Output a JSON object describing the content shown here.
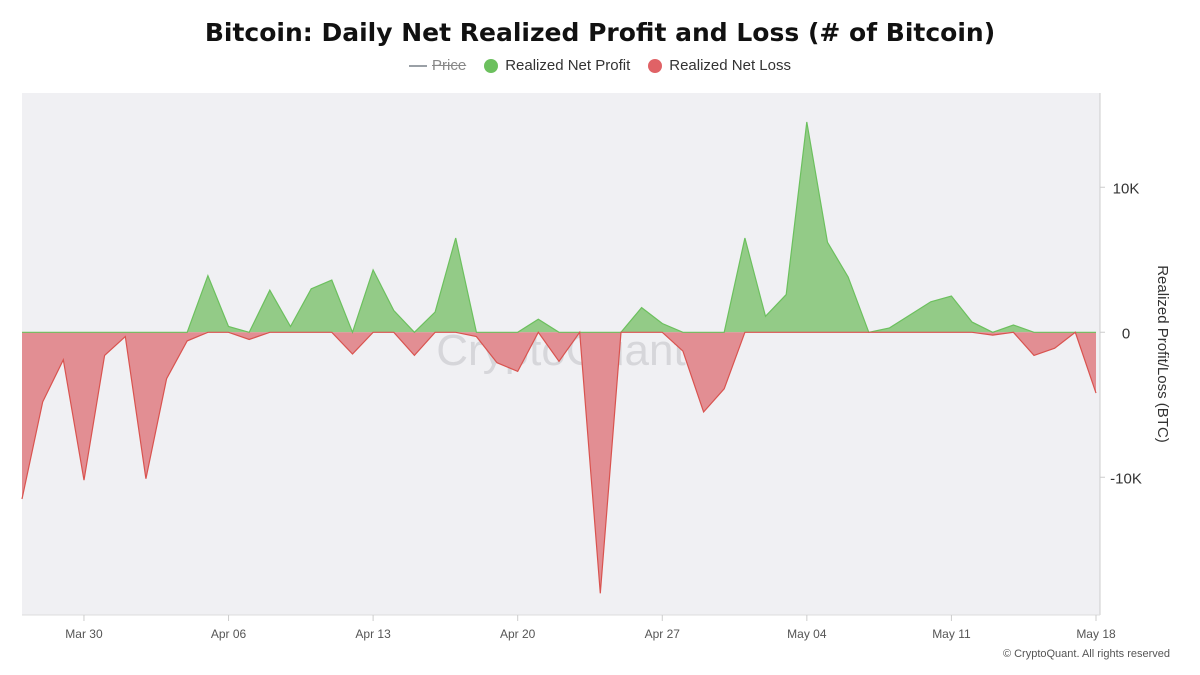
{
  "chart_data": {
    "type": "area",
    "title": "Bitcoin: Daily Net Realized Profit and Loss (# of Bitcoin)",
    "ylabel": "Realized Profit/Loss (BTC)",
    "xlabel": "",
    "ylim": [
      -19500,
      16500
    ],
    "y_ticks": [
      {
        "value": 10000,
        "label": "10K"
      },
      {
        "value": 0,
        "label": "0"
      },
      {
        "value": -10000,
        "label": "-10K"
      }
    ],
    "x_ticks": [
      {
        "date": "2025-03-30",
        "label": "Mar 30"
      },
      {
        "date": "2025-04-06",
        "label": "Apr 06"
      },
      {
        "date": "2025-04-13",
        "label": "Apr 13"
      },
      {
        "date": "2025-04-20",
        "label": "Apr 20"
      },
      {
        "date": "2025-04-27",
        "label": "Apr 27"
      },
      {
        "date": "2025-05-04",
        "label": "May 04"
      },
      {
        "date": "2025-05-11",
        "label": "May 11"
      },
      {
        "date": "2025-05-18",
        "label": "May 18"
      }
    ],
    "x_range": [
      "2025-03-27",
      "2025-05-18"
    ],
    "legend": [
      {
        "name": "Price",
        "color": "#9aa0a6",
        "hidden": true
      },
      {
        "name": "Realized Net Profit",
        "color": "#6cc05e"
      },
      {
        "name": "Realized Net Loss",
        "color": "#e06266"
      }
    ],
    "legend_position": "top-center",
    "grid": false,
    "series": [
      {
        "name": "Realized Net Profit",
        "color": "#6cc05e",
        "fill": "#93cb87",
        "points": [
          [
            "2025-03-27",
            0
          ],
          [
            "2025-03-28",
            0
          ],
          [
            "2025-03-29",
            0
          ],
          [
            "2025-03-30",
            0
          ],
          [
            "2025-03-31",
            0
          ],
          [
            "2025-04-01",
            0
          ],
          [
            "2025-04-02",
            0
          ],
          [
            "2025-04-03",
            0
          ],
          [
            "2025-04-04",
            0
          ],
          [
            "2025-04-05",
            3900
          ],
          [
            "2025-04-06",
            400
          ],
          [
            "2025-04-07",
            0
          ],
          [
            "2025-04-08",
            2900
          ],
          [
            "2025-04-09",
            400
          ],
          [
            "2025-04-10",
            3000
          ],
          [
            "2025-04-11",
            3600
          ],
          [
            "2025-04-12",
            0
          ],
          [
            "2025-04-13",
            4300
          ],
          [
            "2025-04-14",
            1500
          ],
          [
            "2025-04-15",
            0
          ],
          [
            "2025-04-16",
            1400
          ],
          [
            "2025-04-17",
            6500
          ],
          [
            "2025-04-18",
            0
          ],
          [
            "2025-04-19",
            0
          ],
          [
            "2025-04-20",
            0
          ],
          [
            "2025-04-21",
            900
          ],
          [
            "2025-04-22",
            0
          ],
          [
            "2025-04-23",
            0
          ],
          [
            "2025-04-24",
            0
          ],
          [
            "2025-04-25",
            0
          ],
          [
            "2025-04-26",
            1700
          ],
          [
            "2025-04-27",
            600
          ],
          [
            "2025-04-28",
            0
          ],
          [
            "2025-04-29",
            0
          ],
          [
            "2025-04-30",
            0
          ],
          [
            "2025-05-01",
            6500
          ],
          [
            "2025-05-02",
            1100
          ],
          [
            "2025-05-03",
            2600
          ],
          [
            "2025-05-04",
            14500
          ],
          [
            "2025-05-05",
            6200
          ],
          [
            "2025-05-06",
            3800
          ],
          [
            "2025-05-07",
            0
          ],
          [
            "2025-05-08",
            300
          ],
          [
            "2025-05-09",
            1200
          ],
          [
            "2025-05-10",
            2100
          ],
          [
            "2025-05-11",
            2500
          ],
          [
            "2025-05-12",
            700
          ],
          [
            "2025-05-13",
            0
          ],
          [
            "2025-05-14",
            500
          ],
          [
            "2025-05-15",
            0
          ],
          [
            "2025-05-16",
            0
          ],
          [
            "2025-05-17",
            0
          ],
          [
            "2025-05-18",
            0
          ]
        ]
      },
      {
        "name": "Realized Net Loss",
        "color": "#d9534f",
        "fill": "#e28e93",
        "points": [
          [
            "2025-03-27",
            -11500
          ],
          [
            "2025-03-28",
            -4800
          ],
          [
            "2025-03-29",
            -1900
          ],
          [
            "2025-03-30",
            -10200
          ],
          [
            "2025-03-31",
            -1600
          ],
          [
            "2025-04-01",
            -300
          ],
          [
            "2025-04-02",
            -10100
          ],
          [
            "2025-04-03",
            -3200
          ],
          [
            "2025-04-04",
            -600
          ],
          [
            "2025-04-05",
            0
          ],
          [
            "2025-04-06",
            0
          ],
          [
            "2025-04-07",
            -500
          ],
          [
            "2025-04-08",
            0
          ],
          [
            "2025-04-09",
            0
          ],
          [
            "2025-04-10",
            0
          ],
          [
            "2025-04-11",
            0
          ],
          [
            "2025-04-12",
            -1500
          ],
          [
            "2025-04-13",
            0
          ],
          [
            "2025-04-14",
            0
          ],
          [
            "2025-04-15",
            -1600
          ],
          [
            "2025-04-16",
            0
          ],
          [
            "2025-04-17",
            0
          ],
          [
            "2025-04-18",
            -300
          ],
          [
            "2025-04-19",
            -2100
          ],
          [
            "2025-04-20",
            -2700
          ],
          [
            "2025-04-21",
            0
          ],
          [
            "2025-04-22",
            -2000
          ],
          [
            "2025-04-23",
            0
          ],
          [
            "2025-04-24",
            -18000
          ],
          [
            "2025-04-25",
            0
          ],
          [
            "2025-04-26",
            0
          ],
          [
            "2025-04-27",
            0
          ],
          [
            "2025-04-28",
            -1300
          ],
          [
            "2025-04-29",
            -5500
          ],
          [
            "2025-04-30",
            -3900
          ],
          [
            "2025-05-01",
            0
          ],
          [
            "2025-05-02",
            0
          ],
          [
            "2025-05-03",
            0
          ],
          [
            "2025-05-04",
            0
          ],
          [
            "2025-05-05",
            0
          ],
          [
            "2025-05-06",
            0
          ],
          [
            "2025-05-07",
            0
          ],
          [
            "2025-05-08",
            0
          ],
          [
            "2025-05-09",
            0
          ],
          [
            "2025-05-10",
            0
          ],
          [
            "2025-05-11",
            0
          ],
          [
            "2025-05-12",
            0
          ],
          [
            "2025-05-13",
            -200
          ],
          [
            "2025-05-14",
            0
          ],
          [
            "2025-05-15",
            -1600
          ],
          [
            "2025-05-16",
            -1100
          ],
          [
            "2025-05-17",
            0
          ],
          [
            "2025-05-18",
            -4200
          ]
        ]
      }
    ]
  },
  "watermark": "CryptoQuant",
  "copyright": "© CryptoQuant. All rights reserved",
  "colors": {
    "plot_background": "#f0f0f3",
    "profit_fill": "#93cb87",
    "profit_line": "#6cc05e",
    "loss_fill": "#e28e93",
    "loss_line": "#d9534f"
  }
}
